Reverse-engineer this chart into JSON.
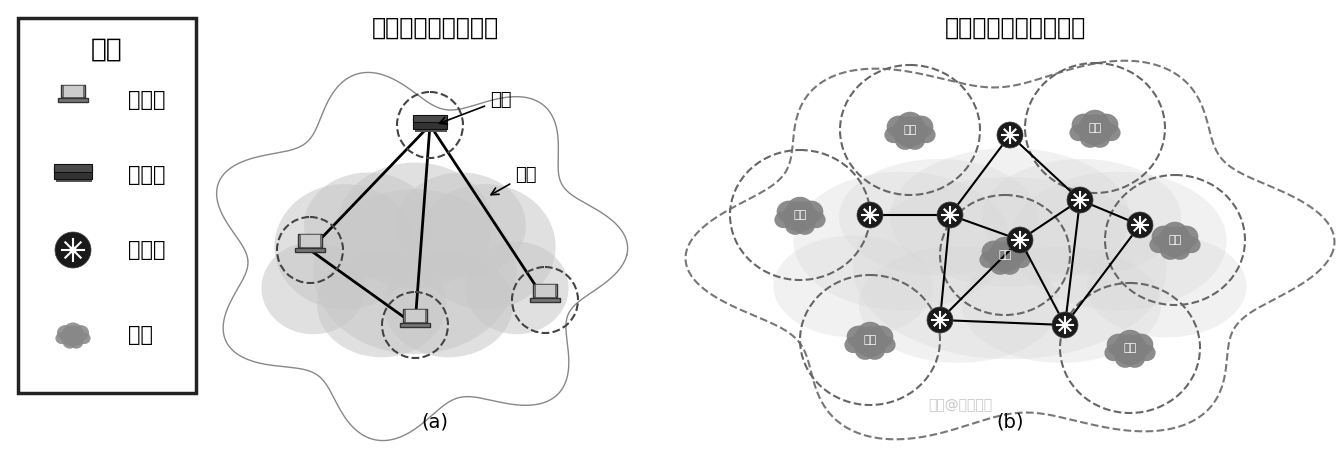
{
  "title_left": "计算机网络（网络）",
  "title_right": "互连网（网络的网络）",
  "legend_title": "图例",
  "legend_items": [
    "计算机",
    "集线器",
    "路由器",
    "网络"
  ],
  "label_a": "(a)",
  "label_b": "(b)",
  "watermark": "知乎@大不自多",
  "node_label": "结点",
  "link_label": "链路",
  "cloud_color": "#c0c0c0",
  "net_cloud_color": "#909090"
}
